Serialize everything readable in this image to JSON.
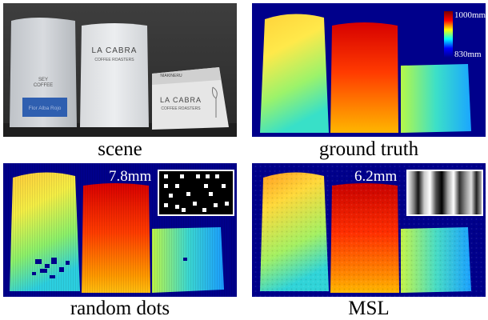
{
  "panels": [
    {
      "id": "scene",
      "caption": "scene"
    },
    {
      "id": "gt",
      "caption": "ground truth",
      "colorbar": {
        "max_label": "1000mm",
        "min_label": "830mm"
      }
    },
    {
      "id": "dots",
      "caption": "random dots",
      "error_label": "7.8mm"
    },
    {
      "id": "msl",
      "caption": "MSL",
      "error_label": "6.2mm"
    }
  ],
  "colors": {
    "background_depth": "#00008b",
    "scene_bg": "#3d3d3d"
  },
  "scene_text": {
    "bag1_line1": "SEY",
    "bag1_line2": "COFFEE",
    "bag1_label": "Flor Alba Rojo",
    "bag2_line1": "LA CABRA",
    "bag2_line2": "COFFEE ROASTERS",
    "box_top": "NIAKINERU",
    "box_line1": "LA CABRA",
    "box_line2": "COFFEE ROASTERS"
  }
}
